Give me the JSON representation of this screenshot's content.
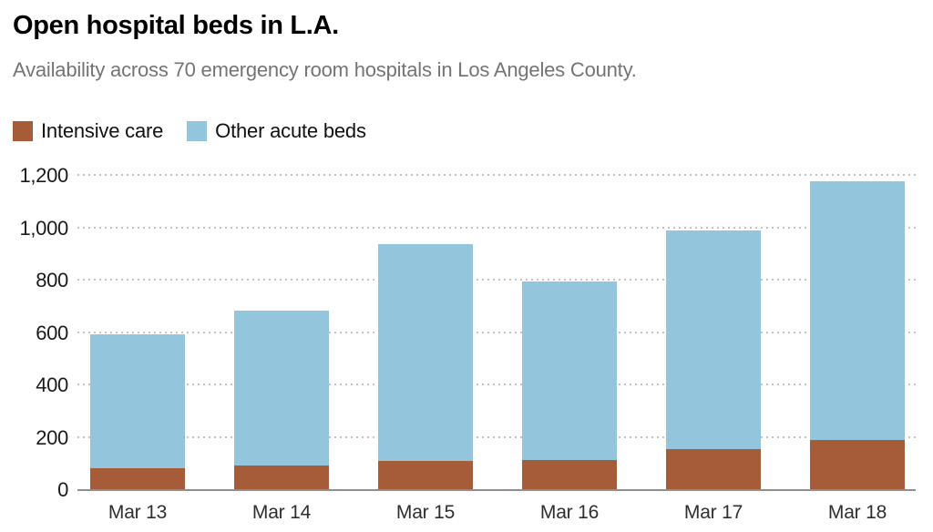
{
  "header": {
    "title": "Open hospital beds in L.A.",
    "subtitle": "Availability across 70 emergency room hospitals in Los Angeles County."
  },
  "legend": {
    "items": [
      {
        "label": "Intensive care",
        "color": "#a65b39"
      },
      {
        "label": "Other acute beds",
        "color": "#93c5dd"
      }
    ]
  },
  "colors": {
    "intensive_care": "#a65b39",
    "other_acute": "#93c5dd",
    "gridline": "#c3c3c3",
    "axis": "#8f8f8f"
  },
  "chart_data": {
    "type": "bar",
    "stacked": true,
    "title": "Open hospital beds in L.A.",
    "subtitle": "Availability across 70 emergency room hospitals in Los Angeles County.",
    "categories": [
      "Mar 13",
      "Mar 14",
      "Mar 15",
      "Mar 16",
      "Mar 17",
      "Mar 18"
    ],
    "series": [
      {
        "name": "Intensive care",
        "color": "#a65b39",
        "values": [
          85,
          95,
          110,
          115,
          155,
          190
        ]
      },
      {
        "name": "Other acute beds",
        "color": "#93c5dd",
        "values": [
          510,
          590,
          830,
          680,
          835,
          990
        ]
      }
    ],
    "totals": [
      595,
      685,
      940,
      795,
      990,
      1180
    ],
    "xlabel": "",
    "ylabel": "",
    "ylim": [
      0,
      1200
    ],
    "yticks": [
      0,
      200,
      400,
      600,
      800,
      1000,
      1200
    ],
    "ytick_labels": [
      "0",
      "200",
      "400",
      "600",
      "800",
      "1,000",
      "1,200"
    ],
    "grid": "horizontal-dotted",
    "legend_position": "top-left"
  }
}
